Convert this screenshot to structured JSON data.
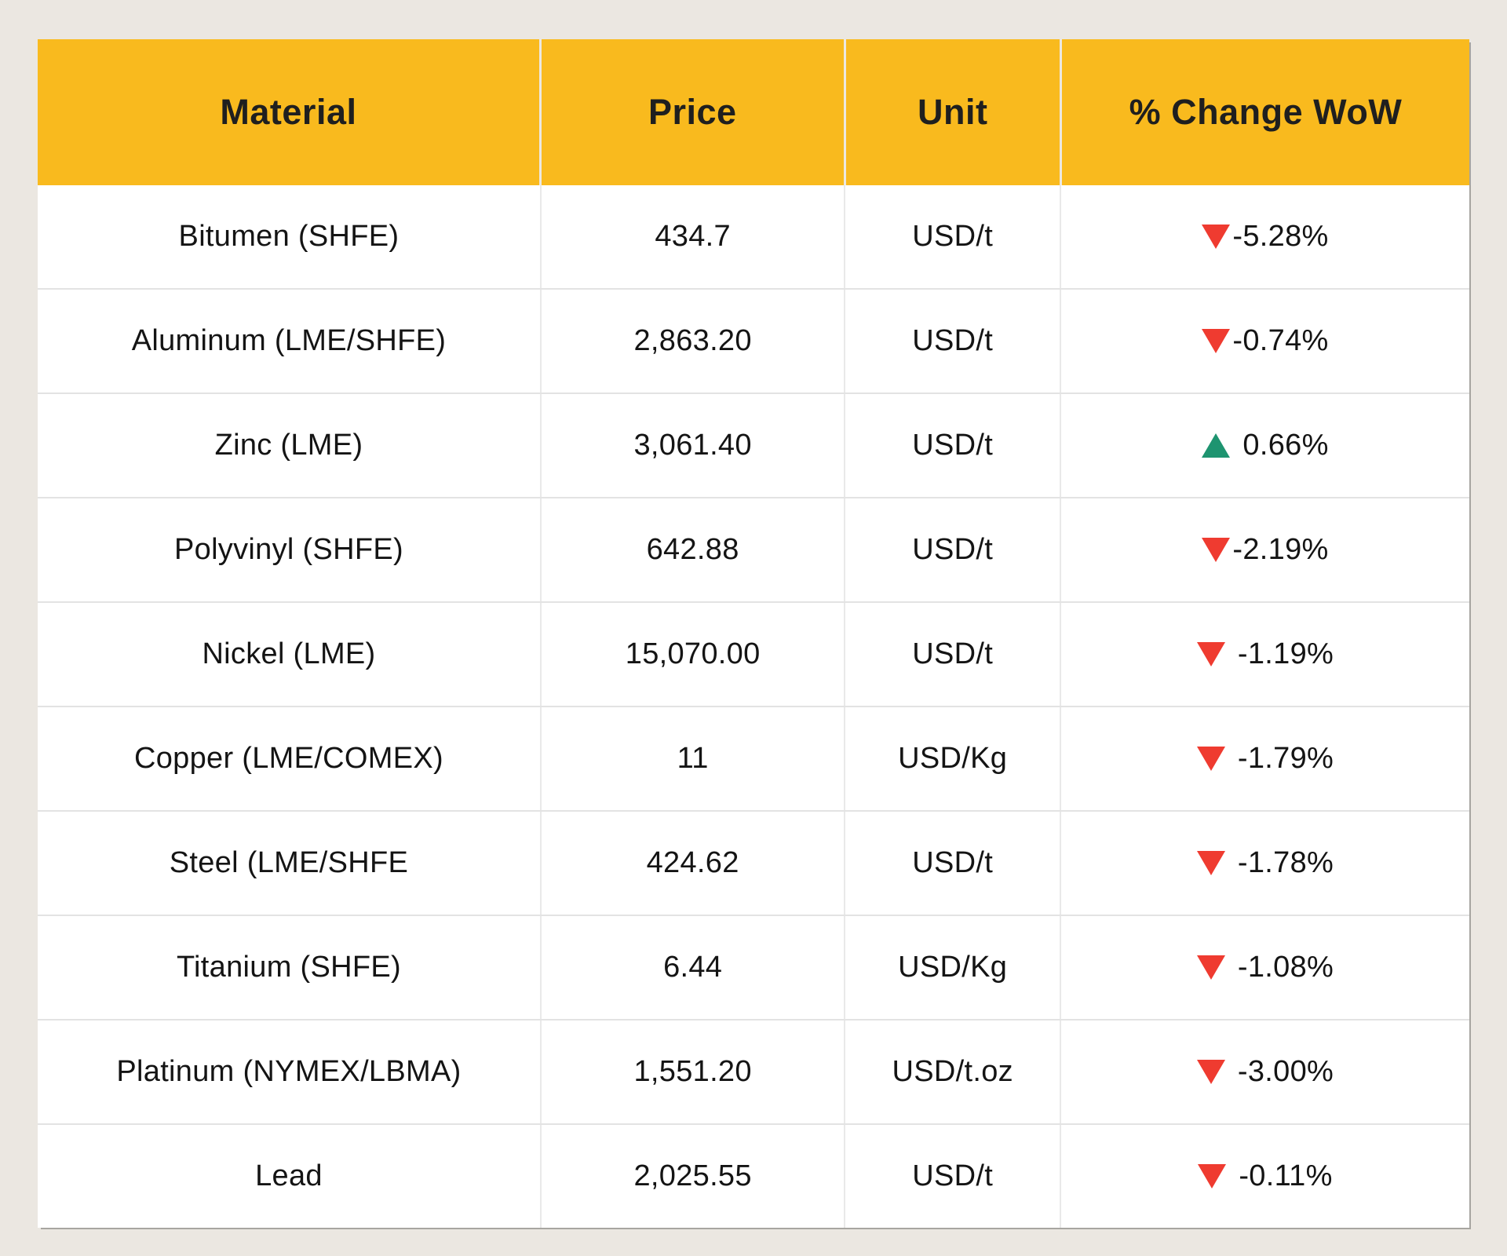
{
  "colors": {
    "page_bg": "#EBE7E1",
    "header_bg": "#F9BA1E",
    "header_text": "#1F1F1F",
    "body_text": "#141414",
    "down_arrow": "#EF3B30",
    "up_arrow": "#1E9470"
  },
  "chart_data": {
    "type": "table",
    "title": "Material prices with week-over-week change",
    "columns": [
      "Material",
      "Price",
      "Unit",
      "% Change WoW"
    ],
    "rows": [
      {
        "material": "Bitumen (SHFE)",
        "price": "434.7",
        "unit": "USD/t",
        "change": "-5.28%",
        "direction": "down",
        "arrow_gap": "tight"
      },
      {
        "material": "Aluminum (LME/SHFE)",
        "price": "2,863.20",
        "unit": "USD/t",
        "change": "-0.74%",
        "direction": "down",
        "arrow_gap": "tight"
      },
      {
        "material": "Zinc (LME)",
        "price": "3,061.40",
        "unit": "USD/t",
        "change": "0.66%",
        "direction": "up",
        "arrow_gap": "wide"
      },
      {
        "material": "Polyvinyl (SHFE)",
        "price": "642.88",
        "unit": "USD/t",
        "change": "-2.19%",
        "direction": "down",
        "arrow_gap": "tight"
      },
      {
        "material": "Nickel (LME)",
        "price": "15,070.00",
        "unit": "USD/t",
        "change": "-1.19%",
        "direction": "down",
        "arrow_gap": "wide"
      },
      {
        "material": "Copper (LME/COMEX)",
        "price": "11",
        "unit": "USD/Kg",
        "change": "-1.79%",
        "direction": "down",
        "arrow_gap": "wide"
      },
      {
        "material": "Steel (LME/SHFE",
        "price": "424.62",
        "unit": "USD/t",
        "change": "-1.78%",
        "direction": "down",
        "arrow_gap": "wide"
      },
      {
        "material": "Titanium (SHFE)",
        "price": "6.44",
        "unit": "USD/Kg",
        "change": "-1.08%",
        "direction": "down",
        "arrow_gap": "wide"
      },
      {
        "material": "Platinum (NYMEX/LBMA)",
        "price": "1,551.20",
        "unit": "USD/t.oz",
        "change": "-3.00%",
        "direction": "down",
        "arrow_gap": "wide"
      },
      {
        "material": "Lead",
        "price": "2,025.55",
        "unit": "USD/t",
        "change": "-0.11%",
        "direction": "down",
        "arrow_gap": "wide"
      }
    ]
  }
}
